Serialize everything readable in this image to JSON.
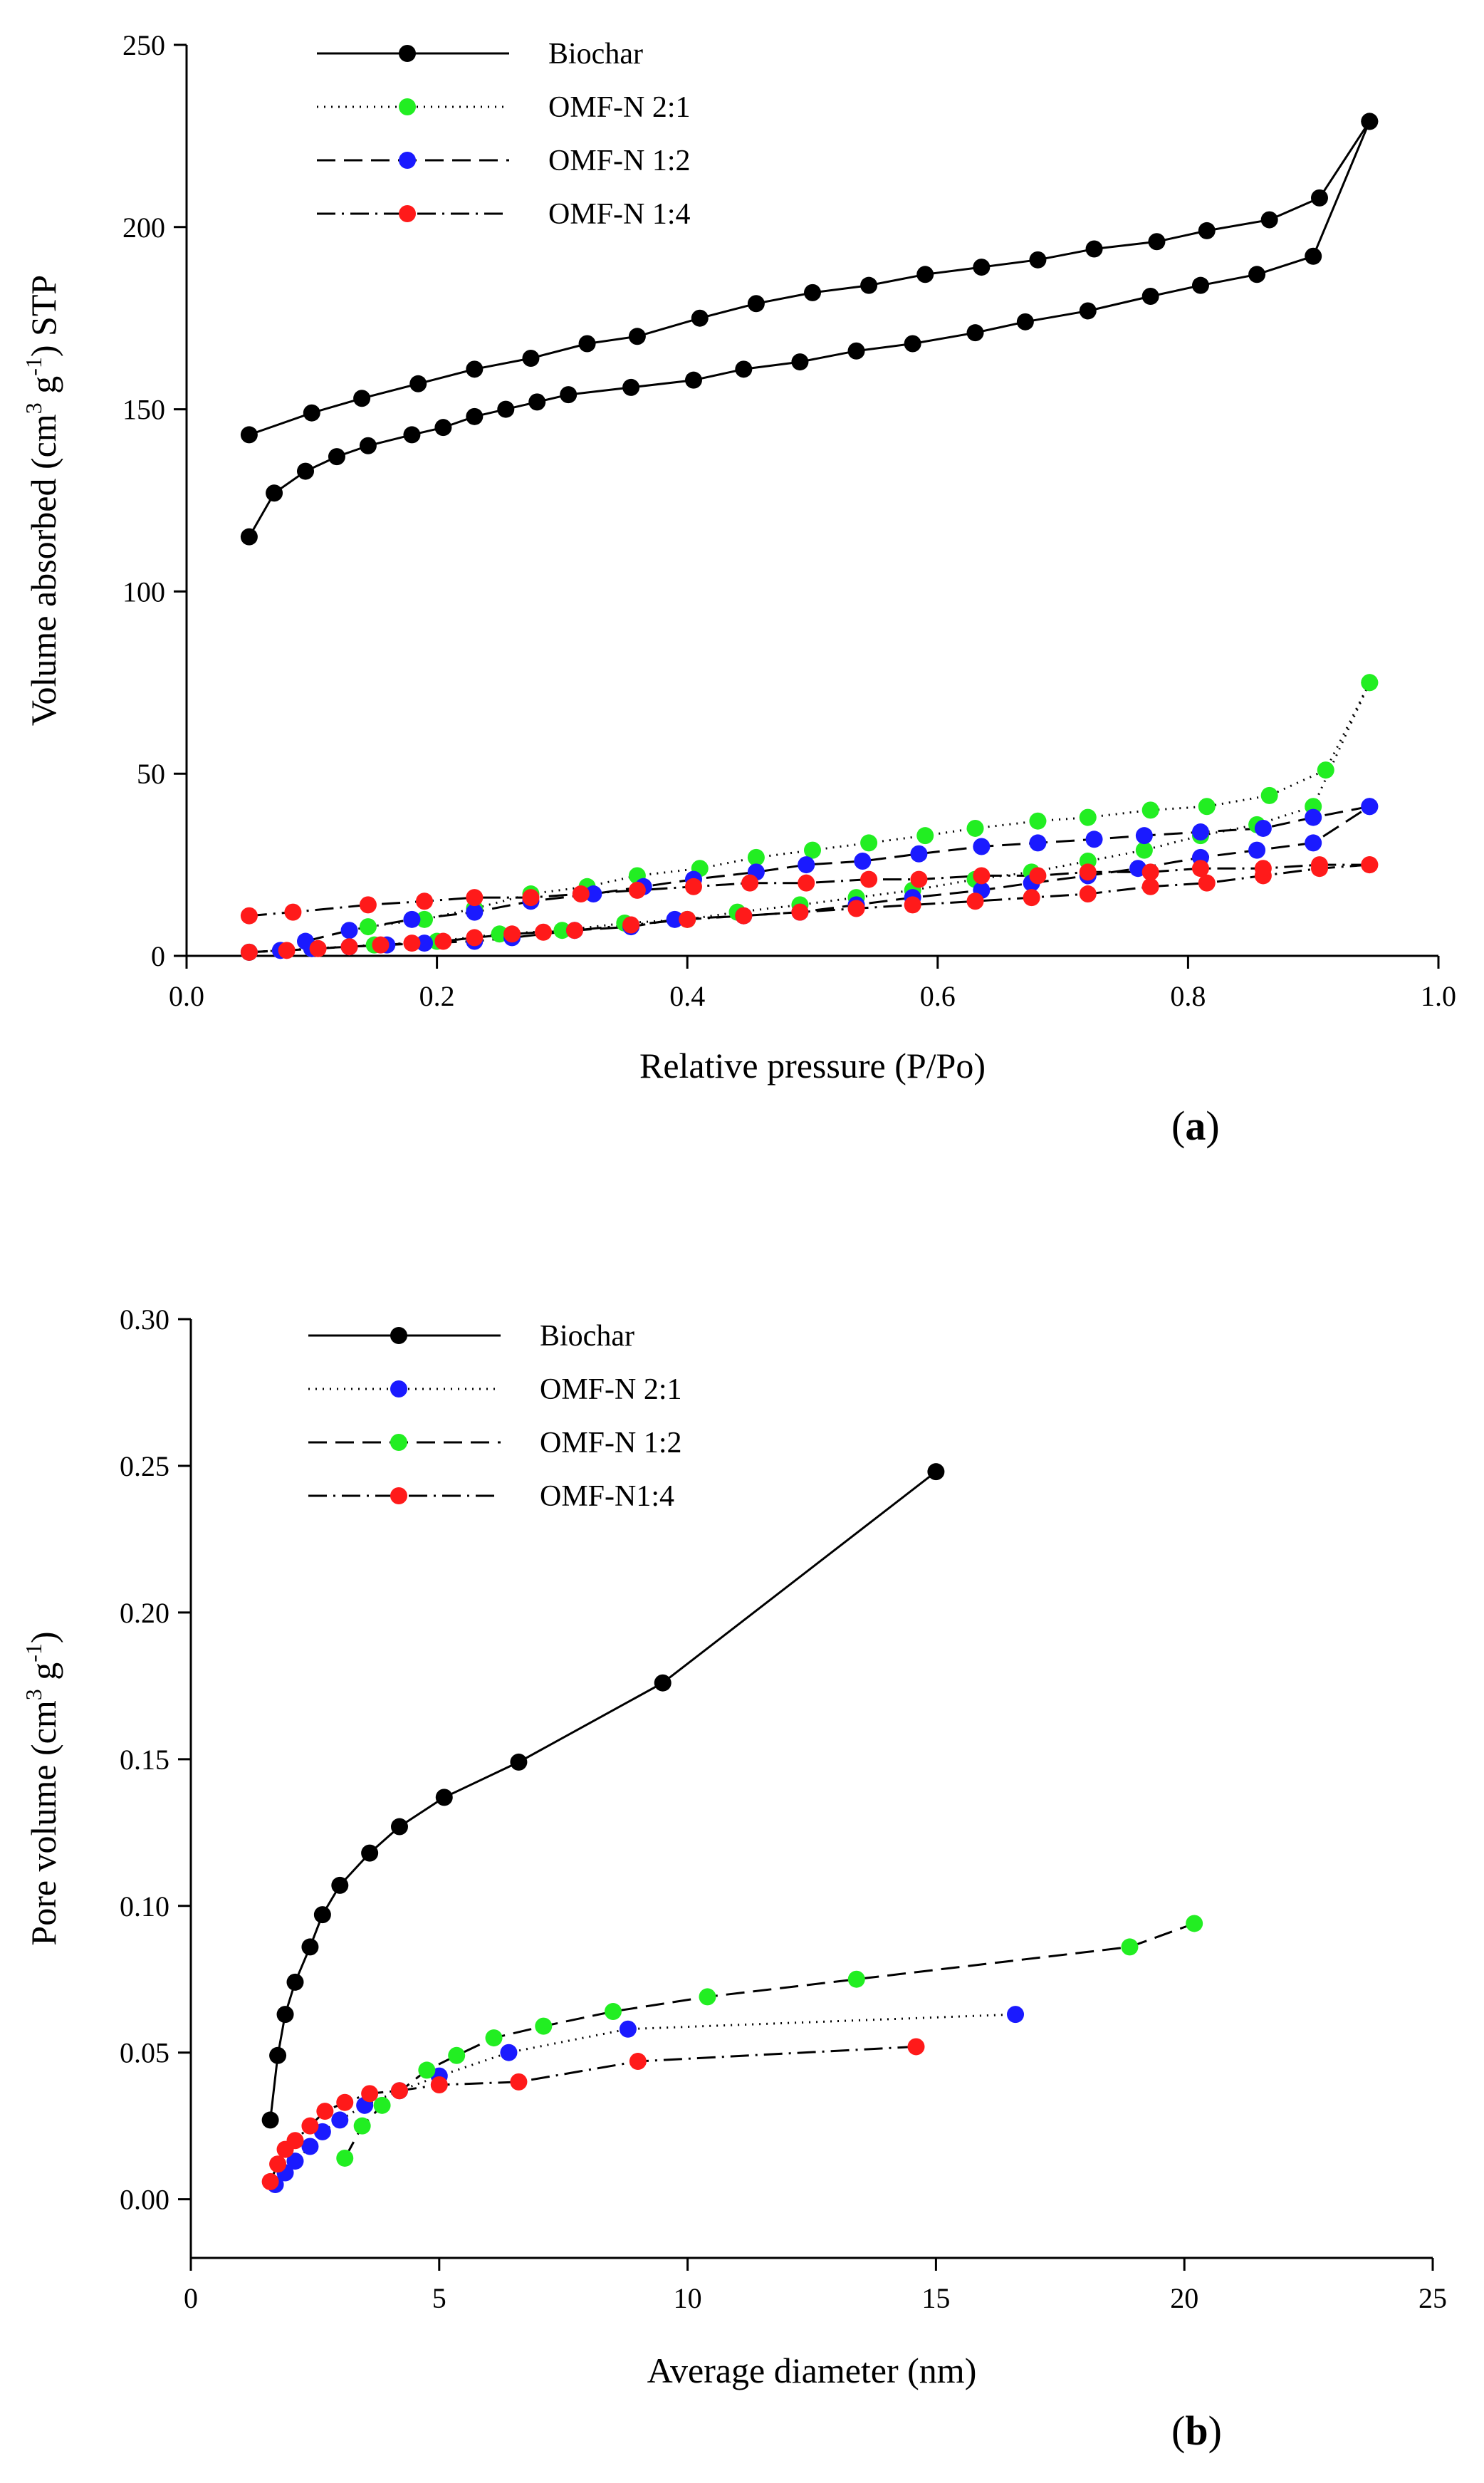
{
  "chart_data": [
    {
      "type": "line",
      "panel_label": "(a)",
      "panel_letter": "a",
      "xlabel": "Relative pressure (P/Po)",
      "ylabel": {
        "part1": "Volume absorbed (cm",
        "sup1": "3",
        "part2": " g",
        "sup2": "-1",
        "part3": ") STP"
      },
      "xlim": [
        0,
        1.0
      ],
      "ylim": [
        0,
        250
      ],
      "xticks": [
        0.0,
        0.2,
        0.4,
        0.6,
        0.8,
        1.0
      ],
      "xtick_labels": [
        "0.0",
        "0.2",
        "0.4",
        "0.6",
        "0.8",
        "1.0"
      ],
      "yticks": [
        0,
        50,
        100,
        150,
        200,
        250
      ],
      "ytick_labels": [
        "0",
        "50",
        "100",
        "150",
        "200",
        "250"
      ],
      "legend": [
        {
          "label": "Biochar",
          "style": "solid",
          "color": "#000000"
        },
        {
          "label": "OMF-N 2:1",
          "style": "dotted",
          "color": "#22ee22"
        },
        {
          "label": "OMF-N 1:2",
          "style": "dashed",
          "color": "#1a1aff"
        },
        {
          "label": "OMF-N 1:4",
          "style": "dashdot",
          "color": "#ff1a1a"
        }
      ],
      "series": [
        {
          "name": "Biochar (adsorption)",
          "color": "#000000",
          "style": "solid",
          "x": [
            0.05,
            0.07,
            0.095,
            0.12,
            0.145,
            0.18,
            0.205,
            0.23,
            0.255,
            0.28,
            0.305,
            0.355,
            0.405,
            0.445,
            0.49,
            0.535,
            0.58,
            0.63,
            0.67,
            0.72,
            0.77,
            0.81,
            0.855,
            0.9,
            0.945
          ],
          "y": [
            115,
            127,
            133,
            137,
            140,
            143,
            145,
            148,
            150,
            152,
            154,
            156,
            158,
            161,
            163,
            166,
            168,
            171,
            174,
            177,
            181,
            184,
            187,
            192,
            229
          ]
        },
        {
          "name": "Biochar (desorption)",
          "color": "#000000",
          "style": "solid",
          "x": [
            0.945,
            0.905,
            0.865,
            0.815,
            0.775,
            0.725,
            0.68,
            0.635,
            0.59,
            0.545,
            0.5,
            0.455,
            0.41,
            0.36,
            0.32,
            0.275,
            0.23,
            0.185,
            0.14,
            0.1,
            0.05
          ],
          "y": [
            229,
            208,
            202,
            199,
            196,
            194,
            191,
            189,
            187,
            184,
            182,
            179,
            175,
            170,
            168,
            164,
            161,
            157,
            153,
            149,
            143
          ]
        },
        {
          "name": "OMF-N 2:1 (adsorption)",
          "color": "#22ee22",
          "style": "dotted",
          "x": [
            0.05,
            0.1,
            0.15,
            0.2,
            0.25,
            0.3,
            0.35,
            0.4,
            0.44,
            0.49,
            0.535,
            0.58,
            0.63,
            0.675,
            0.72,
            0.765,
            0.81,
            0.855,
            0.9,
            0.945
          ],
          "y": [
            1,
            2,
            3,
            4,
            6,
            7,
            9,
            10,
            12,
            14,
            16,
            18,
            21,
            23,
            26,
            29,
            33,
            36,
            41,
            75
          ]
        },
        {
          "name": "OMF-N 2:1 (desorption)",
          "color": "#22ee22",
          "style": "dotted",
          "x": [
            0.945,
            0.91,
            0.865,
            0.815,
            0.77,
            0.72,
            0.68,
            0.63,
            0.59,
            0.545,
            0.5,
            0.455,
            0.41,
            0.36,
            0.32,
            0.275,
            0.23,
            0.19,
            0.145
          ],
          "y": [
            75,
            51,
            44,
            41,
            40,
            38,
            37,
            35,
            33,
            31,
            29,
            27,
            24,
            22,
            19,
            17,
            13,
            10,
            8
          ]
        },
        {
          "name": "OMF-N 1:2 (adsorption)",
          "color": "#1a1aff",
          "style": "dashed",
          "x": [
            0.05,
            0.075,
            0.1,
            0.13,
            0.16,
            0.19,
            0.23,
            0.26,
            0.31,
            0.355,
            0.39,
            0.445,
            0.49,
            0.535,
            0.58,
            0.635,
            0.675,
            0.72,
            0.76,
            0.81,
            0.855,
            0.9,
            0.945
          ],
          "y": [
            1,
            1.5,
            2,
            2.5,
            3,
            3.5,
            4,
            5,
            7,
            8,
            10,
            11,
            12,
            14,
            16,
            18,
            20,
            22,
            24,
            27,
            29,
            31,
            41
          ]
        },
        {
          "name": "OMF-N 1:2 (desorption)",
          "color": "#1a1aff",
          "style": "dashed",
          "x": [
            0.945,
            0.9,
            0.86,
            0.81,
            0.765,
            0.725,
            0.68,
            0.635,
            0.585,
            0.54,
            0.495,
            0.455,
            0.405,
            0.365,
            0.325,
            0.275,
            0.23,
            0.18,
            0.13,
            0.095
          ],
          "y": [
            41,
            38,
            35,
            34,
            33,
            32,
            31,
            30,
            28,
            26,
            25,
            23,
            21,
            19,
            17,
            15,
            12,
            10,
            7,
            4
          ]
        },
        {
          "name": "OMF-N 1:4 (adsorption)",
          "color": "#ff1a1a",
          "style": "dashdot",
          "x": [
            0.05,
            0.08,
            0.105,
            0.13,
            0.155,
            0.18,
            0.205,
            0.23,
            0.26,
            0.285,
            0.31,
            0.355,
            0.4,
            0.445,
            0.49,
            0.535,
            0.58,
            0.63,
            0.675,
            0.72,
            0.77,
            0.815,
            0.86,
            0.905,
            0.945
          ],
          "y": [
            1,
            1.5,
            2,
            2.5,
            3,
            3.5,
            4,
            5,
            6,
            6.5,
            7,
            8.5,
            10,
            11,
            12,
            13,
            14,
            15,
            16,
            17,
            19,
            20,
            22,
            24,
            25
          ]
        },
        {
          "name": "OMF-N 1:4 (desorption)",
          "color": "#ff1a1a",
          "style": "dashdot",
          "x": [
            0.945,
            0.905,
            0.86,
            0.81,
            0.77,
            0.72,
            0.68,
            0.635,
            0.585,
            0.545,
            0.495,
            0.45,
            0.405,
            0.36,
            0.315,
            0.275,
            0.23,
            0.19,
            0.145,
            0.085,
            0.05
          ],
          "y": [
            25,
            25,
            24,
            24,
            23,
            23,
            22,
            22,
            21,
            21,
            20,
            20,
            19,
            18,
            17,
            16,
            16,
            15,
            14,
            12,
            11
          ]
        }
      ]
    },
    {
      "type": "line",
      "panel_label": "(b)",
      "panel_letter": "b",
      "xlabel": "Average diameter (nm)",
      "ylabel": {
        "part1": "Pore volume (cm",
        "sup1": "3",
        "part2": " g",
        "sup2": "-1",
        "part3": ")"
      },
      "xlim": [
        0,
        25
      ],
      "ylim": [
        -0.02,
        0.3
      ],
      "xticks": [
        0,
        5,
        10,
        15,
        20,
        25
      ],
      "xtick_labels": [
        "0",
        "5",
        "10",
        "15",
        "20",
        "25"
      ],
      "yticks": [
        0.0,
        0.05,
        0.1,
        0.15,
        0.2,
        0.25,
        0.3
      ],
      "ytick_labels": [
        "0.00",
        "0.05",
        "0.10",
        "0.15",
        "0.20",
        "0.25",
        "0.30"
      ],
      "legend": [
        {
          "label": "Biochar",
          "style": "solid",
          "color": "#000000"
        },
        {
          "label": "OMF-N 2:1",
          "style": "dotted",
          "color": "#1a1aff"
        },
        {
          "label": "OMF-N 1:2",
          "style": "dashed",
          "color": "#22ee22"
        },
        {
          "label": "OMF-N1:4",
          "style": "dashdot",
          "color": "#ff1a1a"
        }
      ],
      "series": [
        {
          "name": "Biochar",
          "color": "#000000",
          "style": "solid",
          "x": [
            1.6,
            1.75,
            1.9,
            2.1,
            2.4,
            2.65,
            3.0,
            3.6,
            4.2,
            5.1,
            6.6,
            9.5,
            15.0
          ],
          "y": [
            0.027,
            0.049,
            0.063,
            0.074,
            0.086,
            0.097,
            0.107,
            0.118,
            0.127,
            0.137,
            0.149,
            0.176,
            0.248
          ]
        },
        {
          "name": "OMF-N 2:1",
          "color": "#1a1aff",
          "style": "dotted",
          "x": [
            1.7,
            1.9,
            2.1,
            2.4,
            2.65,
            3.0,
            3.5,
            4.2,
            5.0,
            6.4,
            8.8,
            16.6
          ],
          "y": [
            0.005,
            0.009,
            0.013,
            0.018,
            0.023,
            0.027,
            0.032,
            0.037,
            0.042,
            0.05,
            0.058,
            0.063
          ]
        },
        {
          "name": "OMF-N 1:2",
          "color": "#22ee22",
          "style": "dashed",
          "x": [
            3.1,
            3.45,
            3.85,
            4.75,
            5.35,
            6.1,
            7.1,
            8.5,
            10.4,
            13.4,
            18.9,
            20.2
          ],
          "y": [
            0.014,
            0.025,
            0.032,
            0.044,
            0.049,
            0.055,
            0.059,
            0.064,
            0.069,
            0.075,
            0.086,
            0.094
          ]
        },
        {
          "name": "OMF-N1:4",
          "color": "#ff1a1a",
          "style": "dashdot",
          "x": [
            1.6,
            1.75,
            1.9,
            2.1,
            2.4,
            2.7,
            3.1,
            3.6,
            4.2,
            5.0,
            6.6,
            9.0,
            14.6
          ],
          "y": [
            0.006,
            0.012,
            0.017,
            0.02,
            0.025,
            0.03,
            0.033,
            0.036,
            0.037,
            0.039,
            0.04,
            0.047,
            0.052
          ]
        }
      ]
    }
  ]
}
